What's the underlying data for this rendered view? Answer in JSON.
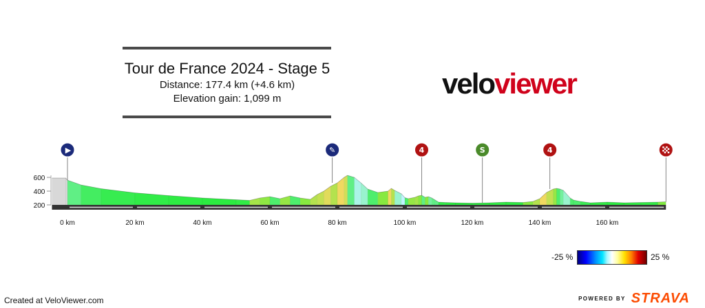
{
  "title": {
    "main": "Tour de France 2024 - Stage 5",
    "distance": "Distance: 177.4 km (+4.6 km)",
    "elevation": "Elevation gain: 1,099 m"
  },
  "brand": {
    "logo_part1": "velo",
    "logo_part2": "viewer",
    "logo_color_dark": "#111111",
    "logo_color_red": "#d0021b"
  },
  "footer": {
    "created": "Created at VeloViewer.com",
    "powered_by": "POWERED BY",
    "strava": "STRAVA",
    "strava_color": "#fc4c02"
  },
  "legend": {
    "min_label": "-25 %",
    "max_label": "25 %",
    "min_gradient": -25,
    "max_gradient": 25
  },
  "chart_data": {
    "type": "area",
    "title": "",
    "xlabel": "",
    "ylabel": "",
    "x_unit": "km",
    "xlim": [
      -4.6,
      177.4
    ],
    "ylim": [
      150,
      650
    ],
    "x_ticks": [
      0,
      20,
      40,
      60,
      80,
      100,
      120,
      140,
      160
    ],
    "x_tick_labels": [
      "0 km",
      "20 km",
      "40 km",
      "60 km",
      "80 km",
      "100 km",
      "120 km",
      "140 km",
      "160 km"
    ],
    "y_ticks": [
      200,
      400,
      600
    ],
    "y_tick_labels": [
      "200",
      "400",
      "600"
    ],
    "grid": false,
    "series": [
      {
        "x": [
          -4.6,
          -0.5,
          0,
          4,
          10,
          20,
          30,
          40,
          50,
          54,
          57,
          60,
          63,
          66,
          69,
          72,
          74,
          76,
          78,
          80,
          82,
          83,
          85,
          87,
          89,
          92,
          95,
          96,
          97,
          99,
          100,
          101,
          103,
          104,
          105,
          106,
          107,
          108,
          109,
          110,
          112,
          115,
          120,
          125,
          130,
          135,
          138,
          140,
          142,
          144,
          145,
          146,
          147,
          149,
          150,
          152,
          155,
          160,
          165,
          170,
          175,
          177.4
        ],
        "elevation": [
          590,
          590,
          560,
          490,
          435,
          375,
          335,
          300,
          275,
          265,
          300,
          320,
          290,
          330,
          300,
          280,
          350,
          400,
          470,
          520,
          600,
          630,
          600,
          520,
          430,
          380,
          400,
          440,
          410,
          360,
          305,
          290,
          310,
          330,
          340,
          310,
          320,
          300,
          270,
          240,
          235,
          230,
          225,
          230,
          240,
          235,
          250,
          290,
          380,
          430,
          440,
          430,
          410,
          300,
          270,
          250,
          230,
          240,
          230,
          235,
          240,
          245
        ],
        "gradient_pct": [
          0,
          0,
          -6,
          -3,
          -1.5,
          -0.8,
          -0.5,
          -0.3,
          -0.2,
          0,
          3,
          1.5,
          -2,
          2,
          -2,
          1,
          4,
          5,
          7,
          4,
          8,
          6,
          -3,
          -7,
          -6,
          -2,
          1,
          8,
          4,
          -6,
          -8,
          -2,
          2,
          3,
          1,
          -3,
          1,
          -4,
          -3,
          -3,
          -0.5,
          -0.3,
          -0.2,
          0.2,
          0.2,
          -0.3,
          1,
          4,
          8,
          5,
          2,
          -2,
          -4,
          -6,
          -2,
          -2,
          -1,
          0.3,
          -0.2,
          0.2,
          0.2,
          0.5
        ]
      }
    ],
    "markers": [
      {
        "km": 0,
        "type": "start",
        "color": "#1b2a7a",
        "symbol": "▶"
      },
      {
        "km": 78.5,
        "type": "feed",
        "color": "#1b2a7a",
        "symbol": "✎"
      },
      {
        "km": 105,
        "type": "climb",
        "color": "#b01212",
        "symbol": "4"
      },
      {
        "km": 123,
        "type": "sprint",
        "color": "#4a8a2a",
        "symbol": "S"
      },
      {
        "km": 143,
        "type": "climb",
        "color": "#b01212",
        "symbol": "4"
      },
      {
        "km": 177.4,
        "type": "finish",
        "color": "#b01212",
        "symbol": "checkered"
      }
    ]
  }
}
